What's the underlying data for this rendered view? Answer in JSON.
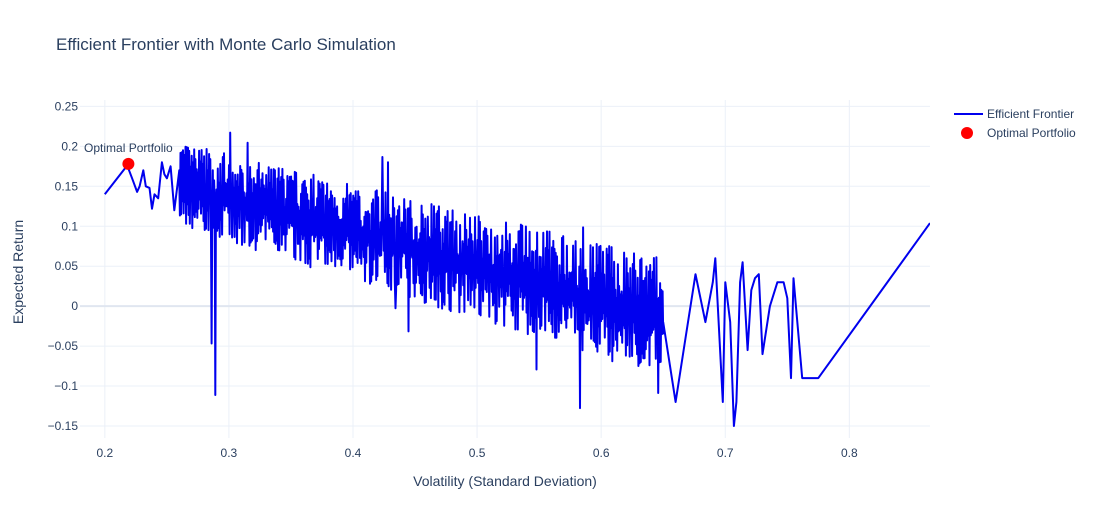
{
  "chart_data": {
    "type": "line",
    "title": "Efficient Frontier with Monte Carlo Simulation",
    "xlabel": "Volatility (Standard Deviation)",
    "ylabel": "Expected Return",
    "xlim": [
      0.18,
      0.865
    ],
    "ylim": [
      -0.165,
      0.258
    ],
    "x_ticks": [
      0.2,
      0.3,
      0.4,
      0.5,
      0.6,
      0.7,
      0.8
    ],
    "x_tick_labels": [
      "0.2",
      "0.3",
      "0.4",
      "0.5",
      "0.6",
      "0.7",
      "0.8"
    ],
    "y_ticks": [
      -0.15,
      -0.1,
      -0.05,
      0,
      0.05,
      0.1,
      0.15,
      0.2,
      0.25
    ],
    "y_tick_labels": [
      "−0.15",
      "−0.1",
      "−0.05",
      "0",
      "0.05",
      "0.1",
      "0.15",
      "0.2",
      "0.25"
    ],
    "grid": true,
    "legend_position": "top-right",
    "colors": {
      "frontier": "#0000ee",
      "optimal": "#ff0000",
      "text": "#2a3f5f",
      "grid": "#ebf0f8",
      "zeroline": "#ebf0f8"
    },
    "series": [
      {
        "name": "Efficient Frontier",
        "mode": "lines",
        "color": "#0000ee",
        "x": [
          0.2,
          0.218,
          0.222,
          0.226,
          0.228,
          0.231,
          0.233,
          0.236,
          0.238,
          0.24,
          0.243,
          0.246,
          0.248,
          0.25,
          0.253,
          0.256,
          0.26,
          0.4,
          0.47,
          0.5,
          0.53,
          0.56,
          0.6,
          0.63,
          0.65,
          0.66,
          0.668,
          0.676,
          0.684,
          0.69,
          0.692,
          0.698,
          0.7,
          0.704,
          0.707,
          0.709,
          0.712,
          0.714,
          0.718,
          0.721,
          0.724,
          0.727,
          0.73,
          0.736,
          0.742,
          0.747,
          0.75,
          0.753,
          0.755,
          0.762,
          0.775,
          0.865
        ],
        "y": [
          0.14,
          0.176,
          0.16,
          0.143,
          0.15,
          0.17,
          0.15,
          0.148,
          0.122,
          0.14,
          0.135,
          0.18,
          0.165,
          0.16,
          0.175,
          0.12,
          0.17,
          0.1,
          0.06,
          0.04,
          0.02,
          0.0,
          0.01,
          0.02,
          -0.02,
          -0.12,
          -0.04,
          0.04,
          -0.02,
          0.03,
          0.06,
          -0.12,
          0.03,
          -0.02,
          -0.15,
          -0.12,
          0.03,
          0.055,
          -0.055,
          0.02,
          0.035,
          0.04,
          -0.06,
          0.0,
          0.03,
          0.03,
          0.01,
          -0.09,
          0.035,
          -0.09,
          -0.09,
          0.104
        ]
      },
      {
        "name": "Optimal Portfolio",
        "mode": "markers",
        "color": "#ff0000",
        "x": [
          0.219
        ],
        "y": [
          0.178
        ],
        "text": "Optimal Portfolio"
      }
    ],
    "noisy_region": {
      "x_start": 0.26,
      "x_end": 0.65,
      "points_per_unit": 2000,
      "upper_start": 0.205,
      "upper_end": 0.06,
      "lower_start": 0.1,
      "lower_end": -0.09,
      "spike_max": 0.236,
      "spike_min": -0.13
    }
  }
}
